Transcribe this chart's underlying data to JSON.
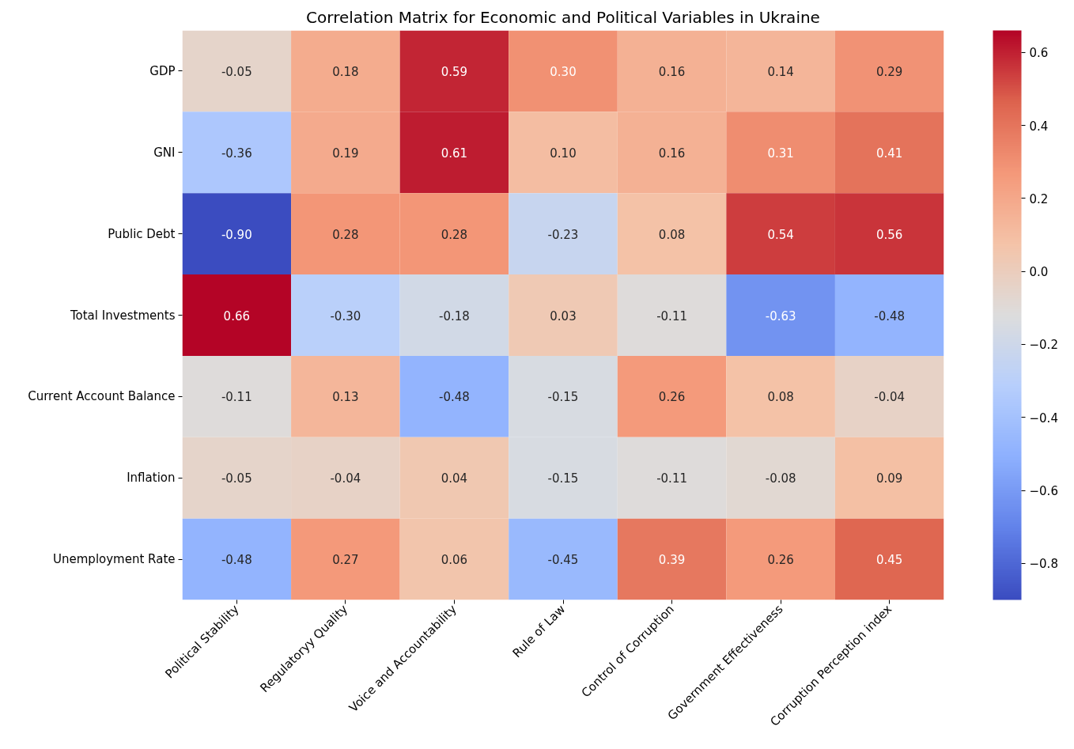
{
  "chart_data": {
    "type": "heatmap",
    "title": "Correlation Matrix for Economic and Political Variables in Ukraine",
    "categories": [
      "Political Stability",
      "Regulatoryy Quality",
      "Voice and Accountability",
      "Rule of Law",
      "Control of Corruption",
      "Government Effectiveness",
      "Corruption Perception index"
    ],
    "y_categories": [
      "GDP",
      "GNI",
      "Public Debt",
      "Total Investments",
      "Current Account Balance",
      "Inflation",
      "Unemployment Rate"
    ],
    "cells": [
      [
        -0.05,
        0.18,
        0.59,
        0.3,
        0.16,
        0.14,
        0.29
      ],
      [
        -0.36,
        0.19,
        0.61,
        0.1,
        0.16,
        0.31,
        0.41
      ],
      [
        -0.9,
        0.28,
        0.28,
        -0.23,
        0.08,
        0.54,
        0.56
      ],
      [
        0.66,
        -0.3,
        -0.18,
        0.03,
        -0.11,
        -0.63,
        -0.48
      ],
      [
        -0.11,
        0.13,
        -0.48,
        -0.15,
        0.26,
        0.08,
        -0.04
      ],
      [
        -0.05,
        -0.04,
        0.04,
        -0.15,
        -0.11,
        -0.08,
        0.09
      ],
      [
        -0.48,
        0.27,
        0.06,
        -0.45,
        0.39,
        0.26,
        0.45
      ]
    ],
    "cell_labels": [
      [
        "-0.05",
        "0.18",
        "0.59",
        "0.30",
        "0.16",
        "0.14",
        "0.29"
      ],
      [
        "-0.36",
        "0.19",
        "0.61",
        "0.10",
        "0.16",
        "0.31",
        "0.41"
      ],
      [
        "-0.90",
        "0.28",
        "0.28",
        "-0.23",
        "0.08",
        "0.54",
        "0.56"
      ],
      [
        "0.66",
        "-0.30",
        "-0.18",
        "0.03",
        "-0.11",
        "-0.63",
        "-0.48"
      ],
      [
        "-0.11",
        "0.13",
        "-0.48",
        "-0.15",
        "0.26",
        "0.08",
        "-0.04"
      ],
      [
        "-0.05",
        "-0.04",
        "0.04",
        "-0.15",
        "-0.11",
        "-0.08",
        "0.09"
      ],
      [
        "-0.48",
        "0.27",
        "0.06",
        "-0.45",
        "0.39",
        "0.26",
        "0.45"
      ]
    ],
    "clim": [
      -0.9,
      0.66
    ],
    "cticks": [
      {
        "value": -0.8,
        "label": "−0.8"
      },
      {
        "value": -0.6,
        "label": "−0.6"
      },
      {
        "value": -0.4,
        "label": "−0.4"
      },
      {
        "value": -0.2,
        "label": "−0.2"
      },
      {
        "value": 0.0,
        "label": "0.0"
      },
      {
        "value": 0.2,
        "label": "0.2"
      },
      {
        "value": 0.4,
        "label": "0.4"
      },
      {
        "value": 0.6,
        "label": "0.6"
      }
    ]
  }
}
